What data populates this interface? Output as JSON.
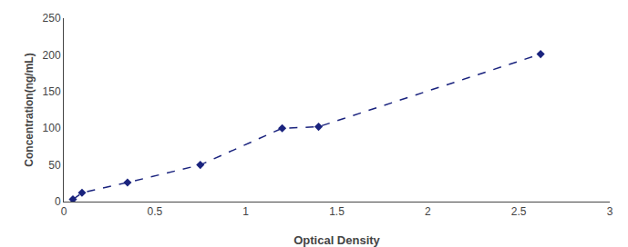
{
  "chart_data": {
    "type": "line",
    "x": [
      0.05,
      0.1,
      0.35,
      0.75,
      1.2,
      1.4,
      2.62
    ],
    "values": [
      3,
      12,
      26,
      50,
      100,
      102,
      201
    ],
    "color": "#1a237e",
    "marker": "diamond",
    "line_style": "dashed",
    "xlabel": "Optical Density",
    "ylabel": "Concentration(ng/mL)",
    "xlim": [
      0,
      3
    ],
    "ylim": [
      0,
      250
    ],
    "xticks": [
      0,
      0.5,
      1,
      1.5,
      2,
      2.5,
      3
    ],
    "yticks": [
      0,
      50,
      100,
      150,
      200,
      250
    ],
    "grid": false
  }
}
